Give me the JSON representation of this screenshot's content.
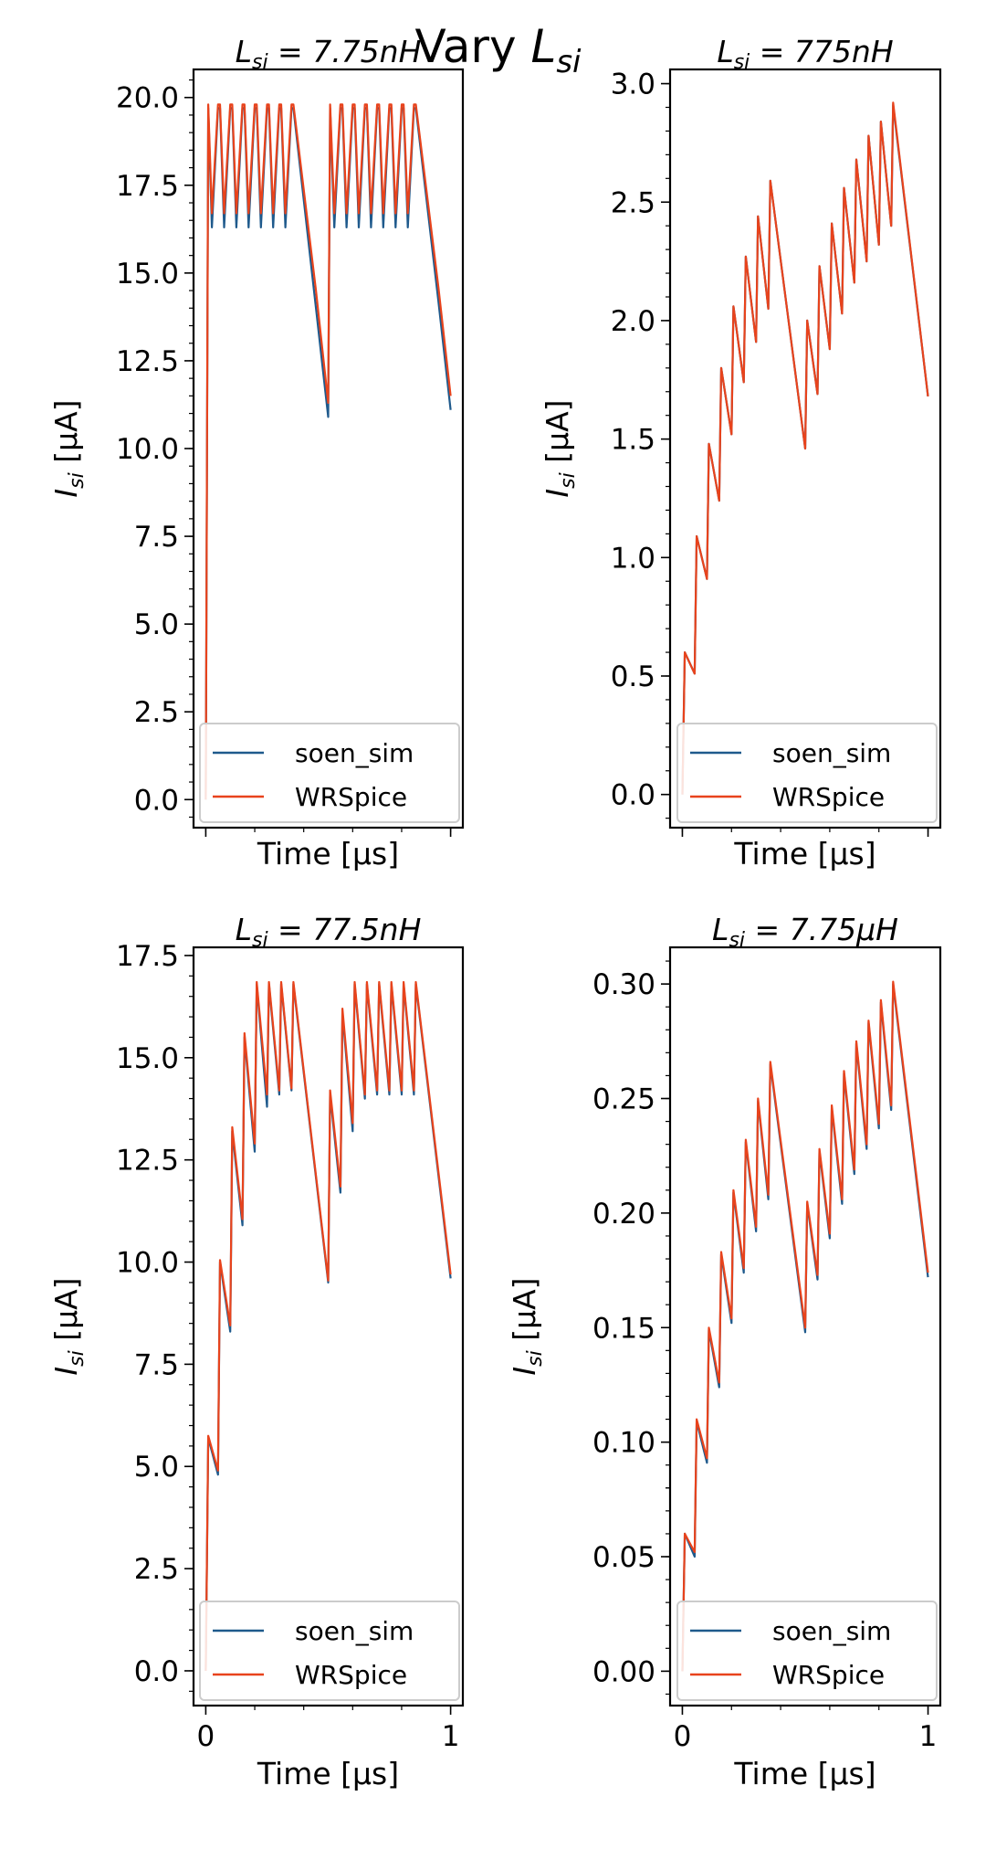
{
  "figure": {
    "title": "Vary ",
    "title_var": "L",
    "title_sub": "si"
  },
  "chart_data": [
    {
      "type": "line",
      "title": "L_si = 7.75nH",
      "title_parts": {
        "var": "L",
        "sub": "si",
        "value": " = 7.75",
        "unit": "nH"
      },
      "xlabel": "Time [μs]",
      "ylabel": "I_si [μA]",
      "xlim": [
        -0.05,
        1.05
      ],
      "ylim": [
        -0.8,
        20.8
      ],
      "yticks": [
        "0.0",
        "2.5",
        "5.0",
        "7.5",
        "10.0",
        "12.5",
        "15.0",
        "17.5",
        "20.0"
      ],
      "ytick_values": [
        0,
        2.5,
        5,
        7.5,
        10,
        12.5,
        15,
        17.5,
        20
      ],
      "xticks": [],
      "legend": "lower-right",
      "series": [
        {
          "name": "soen_sim",
          "color": "#1f5a8c",
          "x": [
            0,
            0.01,
            0.025,
            0.05,
            0.058,
            0.075,
            0.1,
            0.108,
            0.125,
            0.15,
            0.158,
            0.175,
            0.2,
            0.208,
            0.225,
            0.25,
            0.258,
            0.275,
            0.3,
            0.308,
            0.325,
            0.35,
            0.358,
            0.45,
            0.5,
            0.508,
            0.525,
            0.55,
            0.558,
            0.575,
            0.6,
            0.608,
            0.625,
            0.65,
            0.658,
            0.675,
            0.7,
            0.708,
            0.725,
            0.75,
            0.758,
            0.775,
            0.8,
            0.808,
            0.825,
            0.85,
            0.858,
            0.95,
            1.0
          ],
          "y": [
            0,
            19.7,
            16.3,
            19.7,
            19.7,
            16.3,
            19.7,
            19.7,
            16.3,
            19.7,
            19.7,
            16.3,
            19.7,
            19.7,
            16.3,
            19.7,
            19.7,
            16.3,
            19.7,
            19.7,
            16.3,
            19.7,
            19.7,
            14.0,
            10.9,
            19.7,
            16.3,
            19.7,
            19.7,
            16.3,
            19.7,
            19.7,
            16.3,
            19.7,
            19.7,
            16.3,
            19.7,
            19.7,
            16.3,
            19.7,
            19.7,
            16.3,
            19.7,
            19.7,
            16.3,
            19.7,
            19.7,
            14.2,
            11.1
          ]
        },
        {
          "name": "WRSpice",
          "color": "#e8431c",
          "x": [
            0,
            0.01,
            0.025,
            0.05,
            0.058,
            0.075,
            0.1,
            0.108,
            0.125,
            0.15,
            0.158,
            0.175,
            0.2,
            0.208,
            0.225,
            0.25,
            0.258,
            0.275,
            0.3,
            0.308,
            0.325,
            0.35,
            0.358,
            0.45,
            0.5,
            0.508,
            0.525,
            0.55,
            0.558,
            0.575,
            0.6,
            0.608,
            0.625,
            0.65,
            0.658,
            0.675,
            0.7,
            0.708,
            0.725,
            0.75,
            0.758,
            0.775,
            0.8,
            0.808,
            0.825,
            0.85,
            0.858,
            0.95,
            1.0
          ],
          "y": [
            0,
            19.8,
            16.7,
            19.8,
            19.8,
            16.7,
            19.8,
            19.8,
            16.7,
            19.8,
            19.8,
            16.7,
            19.8,
            19.8,
            16.7,
            19.8,
            19.8,
            16.7,
            19.8,
            19.8,
            16.7,
            19.8,
            19.8,
            14.5,
            11.3,
            19.8,
            16.7,
            19.8,
            19.8,
            16.7,
            19.8,
            19.8,
            16.7,
            19.8,
            19.8,
            16.7,
            19.8,
            19.8,
            16.7,
            19.8,
            19.8,
            16.7,
            19.8,
            19.8,
            16.7,
            19.8,
            19.8,
            14.6,
            11.5
          ]
        }
      ]
    },
    {
      "type": "line",
      "title": "L_si = 775nH",
      "title_parts": {
        "var": "L",
        "sub": "si",
        "value": " = 775",
        "unit": "nH"
      },
      "xlabel": "Time [μs]",
      "ylabel": "I_si [μA]",
      "xlim": [
        -0.05,
        1.05
      ],
      "ylim": [
        -0.14,
        3.06
      ],
      "yticks": [
        "0.0",
        "0.5",
        "1.0",
        "1.5",
        "2.0",
        "2.5",
        "3.0"
      ],
      "ytick_values": [
        0,
        0.5,
        1,
        1.5,
        2,
        2.5,
        3
      ],
      "xticks": [],
      "legend": "lower-right",
      "series": [
        {
          "name": "soen_sim",
          "color": "#1f5a8c",
          "x": [
            0,
            0.01,
            0.05,
            0.058,
            0.1,
            0.108,
            0.15,
            0.158,
            0.2,
            0.208,
            0.25,
            0.258,
            0.3,
            0.308,
            0.35,
            0.358,
            0.5,
            0.508,
            0.55,
            0.558,
            0.6,
            0.608,
            0.65,
            0.658,
            0.7,
            0.708,
            0.75,
            0.758,
            0.8,
            0.808,
            0.85,
            0.858,
            1.0
          ],
          "y": [
            0,
            0.6,
            0.51,
            1.09,
            0.91,
            1.48,
            1.24,
            1.8,
            1.52,
            2.06,
            1.74,
            2.27,
            1.91,
            2.44,
            2.05,
            2.59,
            1.46,
            2.0,
            1.69,
            2.23,
            1.88,
            2.41,
            2.03,
            2.56,
            2.16,
            2.68,
            2.25,
            2.78,
            2.32,
            2.84,
            2.4,
            2.91,
            1.68
          ]
        },
        {
          "name": "WRSpice",
          "color": "#e8431c",
          "x": [
            0,
            0.01,
            0.05,
            0.058,
            0.1,
            0.108,
            0.15,
            0.158,
            0.2,
            0.208,
            0.25,
            0.258,
            0.3,
            0.308,
            0.35,
            0.358,
            0.5,
            0.508,
            0.55,
            0.558,
            0.6,
            0.608,
            0.65,
            0.658,
            0.7,
            0.708,
            0.75,
            0.758,
            0.8,
            0.808,
            0.85,
            0.858,
            1.0
          ],
          "y": [
            0,
            0.6,
            0.51,
            1.09,
            0.91,
            1.48,
            1.24,
            1.8,
            1.52,
            2.06,
            1.74,
            2.27,
            1.91,
            2.44,
            2.05,
            2.59,
            1.46,
            2.0,
            1.69,
            2.23,
            1.88,
            2.41,
            2.03,
            2.56,
            2.16,
            2.68,
            2.25,
            2.78,
            2.32,
            2.84,
            2.4,
            2.92,
            1.68
          ]
        }
      ]
    },
    {
      "type": "line",
      "title": "L_si = 77.5nH",
      "title_parts": {
        "var": "L",
        "sub": "si",
        "value": " = 77.5",
        "unit": "nH"
      },
      "xlabel": "Time [μs]",
      "ylabel": "I_si [μA]",
      "xlim": [
        -0.05,
        1.05
      ],
      "ylim": [
        -0.85,
        17.7
      ],
      "yticks": [
        "0.0",
        "2.5",
        "5.0",
        "7.5",
        "10.0",
        "12.5",
        "15.0",
        "17.5"
      ],
      "ytick_values": [
        0,
        2.5,
        5,
        7.5,
        10,
        12.5,
        15,
        17.5
      ],
      "xticks": [
        "0",
        "1"
      ],
      "xtick_values": [
        0,
        1
      ],
      "legend": "lower-right",
      "series": [
        {
          "name": "soen_sim",
          "color": "#1f5a8c",
          "x": [
            0,
            0.01,
            0.05,
            0.058,
            0.1,
            0.108,
            0.15,
            0.158,
            0.2,
            0.208,
            0.25,
            0.258,
            0.3,
            0.308,
            0.35,
            0.358,
            0.5,
            0.508,
            0.55,
            0.558,
            0.6,
            0.608,
            0.65,
            0.658,
            0.7,
            0.708,
            0.75,
            0.758,
            0.8,
            0.808,
            0.85,
            0.858,
            1.0
          ],
          "y": [
            0,
            5.7,
            4.8,
            10.0,
            8.3,
            13.2,
            10.9,
            15.5,
            12.7,
            16.8,
            13.8,
            16.8,
            14.1,
            16.8,
            14.2,
            16.8,
            9.5,
            14.1,
            11.7,
            16.1,
            13.2,
            16.8,
            14.0,
            16.8,
            14.1,
            16.8,
            14.1,
            16.8,
            14.1,
            16.8,
            14.1,
            16.8,
            9.6
          ]
        },
        {
          "name": "WRSpice",
          "color": "#e8431c",
          "x": [
            0,
            0.01,
            0.05,
            0.058,
            0.1,
            0.108,
            0.15,
            0.158,
            0.2,
            0.208,
            0.25,
            0.258,
            0.3,
            0.308,
            0.35,
            0.358,
            0.5,
            0.508,
            0.55,
            0.558,
            0.6,
            0.608,
            0.65,
            0.658,
            0.7,
            0.708,
            0.75,
            0.758,
            0.8,
            0.808,
            0.85,
            0.858,
            1.0
          ],
          "y": [
            0,
            5.75,
            4.9,
            10.05,
            8.45,
            13.3,
            11.05,
            15.6,
            12.9,
            16.85,
            14.1,
            16.85,
            14.2,
            16.85,
            14.25,
            16.85,
            9.55,
            14.2,
            11.85,
            16.2,
            13.4,
            16.85,
            14.1,
            16.85,
            14.2,
            16.85,
            14.2,
            16.85,
            14.2,
            16.85,
            14.2,
            16.85,
            9.7
          ]
        }
      ]
    },
    {
      "type": "line",
      "title": "L_si = 7.75μH",
      "title_parts": {
        "var": "L",
        "sub": "si",
        "value": " = 7.75",
        "unit": "μH"
      },
      "xlabel": "Time [μs]",
      "ylabel": "I_si [μA]",
      "xlim": [
        -0.05,
        1.05
      ],
      "ylim": [
        -0.015,
        0.316
      ],
      "yticks": [
        "0.00",
        "0.05",
        "0.10",
        "0.15",
        "0.20",
        "0.25",
        "0.30"
      ],
      "ytick_values": [
        0,
        0.05,
        0.1,
        0.15,
        0.2,
        0.25,
        0.3
      ],
      "xticks": [
        "0",
        "1"
      ],
      "xtick_values": [
        0,
        1
      ],
      "legend": "lower-right",
      "series": [
        {
          "name": "soen_sim",
          "color": "#1f5a8c",
          "x": [
            0,
            0.01,
            0.05,
            0.058,
            0.1,
            0.108,
            0.15,
            0.158,
            0.2,
            0.208,
            0.25,
            0.258,
            0.3,
            0.308,
            0.35,
            0.358,
            0.5,
            0.508,
            0.55,
            0.558,
            0.6,
            0.608,
            0.65,
            0.658,
            0.7,
            0.708,
            0.75,
            0.758,
            0.8,
            0.808,
            0.85,
            0.858,
            1.0
          ],
          "y": [
            0,
            0.06,
            0.05,
            0.109,
            0.091,
            0.149,
            0.124,
            0.182,
            0.152,
            0.209,
            0.174,
            0.231,
            0.192,
            0.249,
            0.206,
            0.265,
            0.148,
            0.204,
            0.171,
            0.227,
            0.189,
            0.246,
            0.204,
            0.261,
            0.217,
            0.274,
            0.228,
            0.283,
            0.237,
            0.292,
            0.245,
            0.3,
            0.172
          ]
        },
        {
          "name": "WRSpice",
          "color": "#e8431c",
          "x": [
            0,
            0.01,
            0.05,
            0.058,
            0.1,
            0.108,
            0.15,
            0.158,
            0.2,
            0.208,
            0.25,
            0.258,
            0.3,
            0.308,
            0.35,
            0.358,
            0.5,
            0.508,
            0.55,
            0.558,
            0.6,
            0.608,
            0.65,
            0.658,
            0.7,
            0.708,
            0.75,
            0.758,
            0.8,
            0.808,
            0.85,
            0.858,
            1.0
          ],
          "y": [
            0,
            0.06,
            0.052,
            0.11,
            0.093,
            0.15,
            0.126,
            0.183,
            0.154,
            0.21,
            0.176,
            0.232,
            0.194,
            0.25,
            0.208,
            0.266,
            0.15,
            0.205,
            0.173,
            0.228,
            0.191,
            0.247,
            0.206,
            0.262,
            0.219,
            0.275,
            0.23,
            0.284,
            0.239,
            0.293,
            0.247,
            0.301,
            0.174
          ]
        }
      ]
    }
  ]
}
